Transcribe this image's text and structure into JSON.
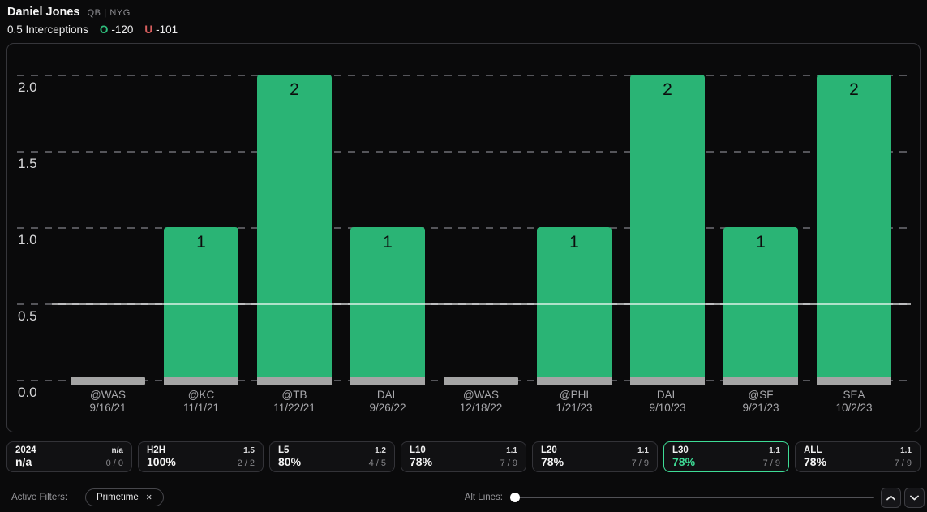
{
  "header": {
    "player": "Daniel Jones",
    "position_team": "QB | NYG",
    "prop": "0.5 Interceptions",
    "over_symbol": "O",
    "over_odds": "-120",
    "under_symbol": "U",
    "under_odds": "-101"
  },
  "colors": {
    "background": "#0a0a0b",
    "bar_green": "#2ab475",
    "bar_base_gray": "#a5a5a5",
    "highlight_green": "#3edc96",
    "over_green": "#2fbe7d",
    "under_red": "#d95f5f"
  },
  "chart_data": {
    "type": "bar",
    "title": "",
    "xlabel": "",
    "ylabel": "",
    "ylim": [
      0,
      2.17
    ],
    "grid": "dashed horizontal",
    "prop_line": 0.5,
    "yticks": [
      {
        "value": 0,
        "label": "0.0"
      },
      {
        "value": 0.5,
        "label": "0.5"
      },
      {
        "value": 1,
        "label": "1.0"
      },
      {
        "value": 1.5,
        "label": "1.5"
      },
      {
        "value": 2,
        "label": "2.0"
      }
    ],
    "games": [
      {
        "opponent": "@WAS",
        "date": "9/16/21",
        "value": 0
      },
      {
        "opponent": "@KC",
        "date": "11/1/21",
        "value": 1
      },
      {
        "opponent": "@TB",
        "date": "11/22/21",
        "value": 2
      },
      {
        "opponent": "DAL",
        "date": "9/26/22",
        "value": 1
      },
      {
        "opponent": "@WAS",
        "date": "12/18/22",
        "value": 0
      },
      {
        "opponent": "@PHI",
        "date": "1/21/23",
        "value": 1
      },
      {
        "opponent": "DAL",
        "date": "9/10/23",
        "value": 2
      },
      {
        "opponent": "@SF",
        "date": "9/21/23",
        "value": 1
      },
      {
        "opponent": "SEA",
        "date": "10/2/23",
        "value": 2
      }
    ]
  },
  "stats": {
    "boxes": [
      {
        "label": "2024",
        "avg": "n/a",
        "pct": "n/a",
        "record": "0 / 0",
        "selected": false
      },
      {
        "label": "H2H",
        "avg": "1.5",
        "pct": "100%",
        "record": "2 / 2",
        "selected": false
      },
      {
        "label": "L5",
        "avg": "1.2",
        "pct": "80%",
        "record": "4 / 5",
        "selected": false
      },
      {
        "label": "L10",
        "avg": "1.1",
        "pct": "78%",
        "record": "7 / 9",
        "selected": false
      },
      {
        "label": "L20",
        "avg": "1.1",
        "pct": "78%",
        "record": "7 / 9",
        "selected": false
      },
      {
        "label": "L30",
        "avg": "1.1",
        "pct": "78%",
        "record": "7 / 9",
        "selected": true
      },
      {
        "label": "ALL",
        "avg": "1.1",
        "pct": "78%",
        "record": "7 / 9",
        "selected": false
      }
    ]
  },
  "footer": {
    "active_filters_label": "Active Filters:",
    "filters": [
      "Primetime"
    ],
    "alt_lines_label": "Alt Lines:"
  }
}
